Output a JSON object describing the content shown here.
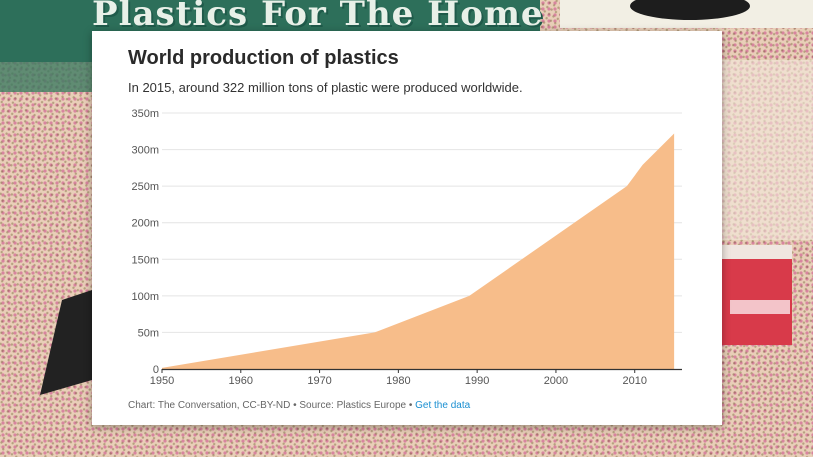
{
  "background": {
    "banner_text": "Plastics For The Home"
  },
  "chart_data": {
    "type": "area",
    "title": "World production of plastics",
    "subtitle": "In 2015, around 322 million tons of plastic were produced worldwide.",
    "xlabel": "",
    "ylabel": "",
    "x": [
      1950,
      1977,
      1989,
      2009,
      2011,
      2015
    ],
    "series": [
      {
        "values": [
          1.5,
          50,
          100,
          250,
          279,
          322
        ],
        "color": "#f7bd8a"
      }
    ],
    "xlim": [
      1950,
      2016
    ],
    "ylim": [
      0,
      350
    ],
    "x_ticks": [
      1950,
      1960,
      1970,
      1980,
      1990,
      2000,
      2010
    ],
    "y_ticks": [
      0,
      50,
      100,
      150,
      200,
      250,
      300,
      350
    ],
    "y_tick_labels": [
      "0",
      "50m",
      "100m",
      "150m",
      "200m",
      "250m",
      "300m",
      "350m"
    ],
    "grid": true,
    "legend": "none"
  },
  "footer": {
    "credit": "Chart: The Conversation, CC-BY-ND • Source: Plastics Europe •",
    "link": "Get the data"
  }
}
